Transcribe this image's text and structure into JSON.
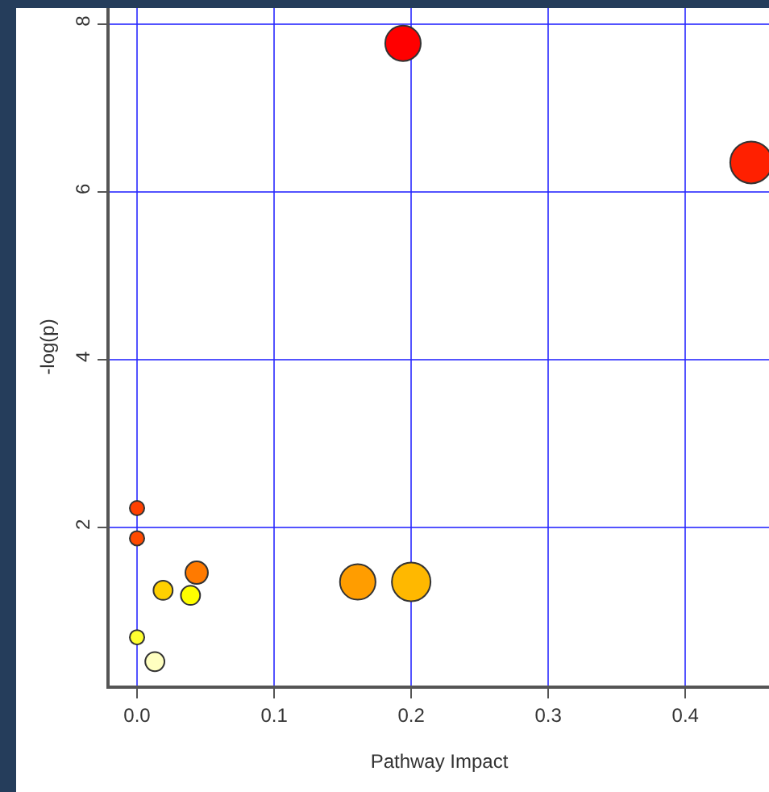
{
  "chart_data": {
    "type": "bubble",
    "xlabel": "Pathway Impact",
    "ylabel": "-log(p)",
    "x": [
      0.194,
      0.448,
      0.0,
      0.0,
      0.0435,
      0.019,
      0.039,
      0.161,
      0.2,
      0.0,
      0.013
    ],
    "values": [
      7.77,
      6.35,
      2.23,
      1.87,
      1.46,
      1.25,
      1.19,
      1.35,
      1.35,
      0.69,
      0.4
    ],
    "sizes": [
      0.72,
      1,
      0.12,
      0.12,
      0.29,
      0.21,
      0.21,
      0.72,
      0.85,
      0.12,
      0.21
    ],
    "colors": [
      "#ff0000",
      "#ff2000",
      "#ff4000",
      "#ff4a00",
      "#ff7a00",
      "#ffd000",
      "#ffff00",
      "#ff9d00",
      "#ffb800",
      "#ffff30",
      "#ffffc0"
    ],
    "xlim": [
      -0.02,
      0.461
    ],
    "ylim": [
      0.115,
      8.19
    ],
    "xticks": [
      {
        "value": 0,
        "label": "0.0"
      },
      0.1,
      0.2,
      0.3,
      0.4
    ],
    "yticks": [
      2,
      4,
      6,
      8
    ],
    "grid": true,
    "marker": "circle"
  }
}
